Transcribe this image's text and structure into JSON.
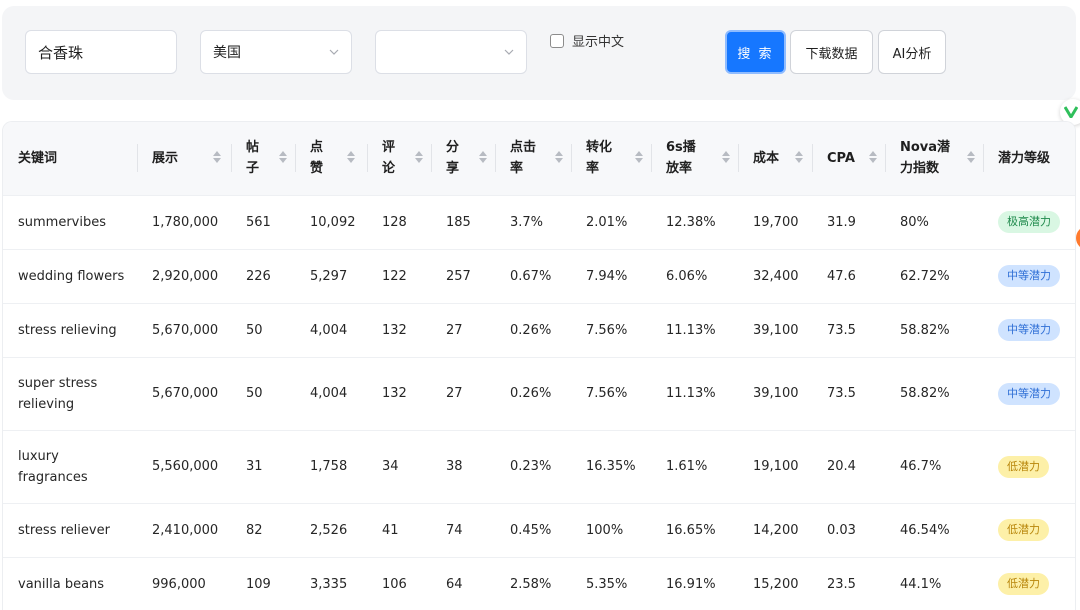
{
  "search": {
    "keyword_value": "合香珠",
    "country_value": "美国",
    "second_select_value": "",
    "show_chinese_label": "显示中文",
    "search_button": "搜 索",
    "download_button": "下载数据",
    "ai_button": "AI分析"
  },
  "table": {
    "headers": [
      "关键词",
      "展示",
      "帖子",
      "点赞",
      "评论",
      "分享",
      "点击率",
      "转化率",
      "6s播放率",
      "成本",
      "CPA",
      "Nova潜力指数",
      "潜力等级"
    ],
    "rows": [
      {
        "keyword": "summervibes",
        "impressions": "1,780,000",
        "posts": "561",
        "likes": "10,092",
        "comments": "128",
        "shares": "185",
        "ctr": "3.7%",
        "cvr": "2.01%",
        "play6s": "12.38%",
        "cost": "19,700",
        "cpa": "31.9",
        "nova": "80%",
        "level": "极高潜力",
        "level_color": "#d9f7e3",
        "level_text_color": "#1f8a4c"
      },
      {
        "keyword": "wedding flowers",
        "impressions": "2,920,000",
        "posts": "226",
        "likes": "5,297",
        "comments": "122",
        "shares": "257",
        "ctr": "0.67%",
        "cvr": "7.94%",
        "play6s": "6.06%",
        "cost": "32,400",
        "cpa": "47.6",
        "nova": "62.72%",
        "level": "中等潜力",
        "level_color": "#cfe3ff",
        "level_text_color": "#2f6fd6"
      },
      {
        "keyword": "stress relieving",
        "impressions": "5,670,000",
        "posts": "50",
        "likes": "4,004",
        "comments": "132",
        "shares": "27",
        "ctr": "0.26%",
        "cvr": "7.56%",
        "play6s": "11.13%",
        "cost": "39,100",
        "cpa": "73.5",
        "nova": "58.82%",
        "level": "中等潜力",
        "level_color": "#cfe3ff",
        "level_text_color": "#2f6fd6"
      },
      {
        "keyword": "super stress relieving",
        "impressions": "5,670,000",
        "posts": "50",
        "likes": "4,004",
        "comments": "132",
        "shares": "27",
        "ctr": "0.26%",
        "cvr": "7.56%",
        "play6s": "11.13%",
        "cost": "39,100",
        "cpa": "73.5",
        "nova": "58.82%",
        "level": "中等潜力",
        "level_color": "#cfe3ff",
        "level_text_color": "#2f6fd6"
      },
      {
        "keyword": "luxury fragrances",
        "impressions": "5,560,000",
        "posts": "31",
        "likes": "1,758",
        "comments": "34",
        "shares": "38",
        "ctr": "0.23%",
        "cvr": "16.35%",
        "play6s": "1.61%",
        "cost": "19,100",
        "cpa": "20.4",
        "nova": "46.7%",
        "level": "低潜力",
        "level_color": "#fdf0a8",
        "level_text_color": "#b8860b"
      },
      {
        "keyword": "stress reliever",
        "impressions": "2,410,000",
        "posts": "82",
        "likes": "2,526",
        "comments": "41",
        "shares": "74",
        "ctr": "0.45%",
        "cvr": "100%",
        "play6s": "16.65%",
        "cost": "14,200",
        "cpa": "0.03",
        "nova": "46.54%",
        "level": "低潜力",
        "level_color": "#fdf0a8",
        "level_text_color": "#b8860b"
      },
      {
        "keyword": "vanilla beans",
        "impressions": "996,000",
        "posts": "109",
        "likes": "3,335",
        "comments": "106",
        "shares": "64",
        "ctr": "2.58%",
        "cvr": "5.35%",
        "play6s": "16.91%",
        "cost": "15,200",
        "cpa": "23.5",
        "nova": "44.1%",
        "level": "低潜力",
        "level_color": "#fdf0a8",
        "level_text_color": "#b8860b"
      }
    ]
  },
  "colors": {
    "primary": "#1677ff",
    "toolbar_bg": "#f4f5f7",
    "header_bg": "#f7f8fa"
  },
  "icons": {
    "select_arrow": "chevron-down-icon",
    "sort": "sort-icon",
    "side_widget": "green-v-badge-icon"
  }
}
